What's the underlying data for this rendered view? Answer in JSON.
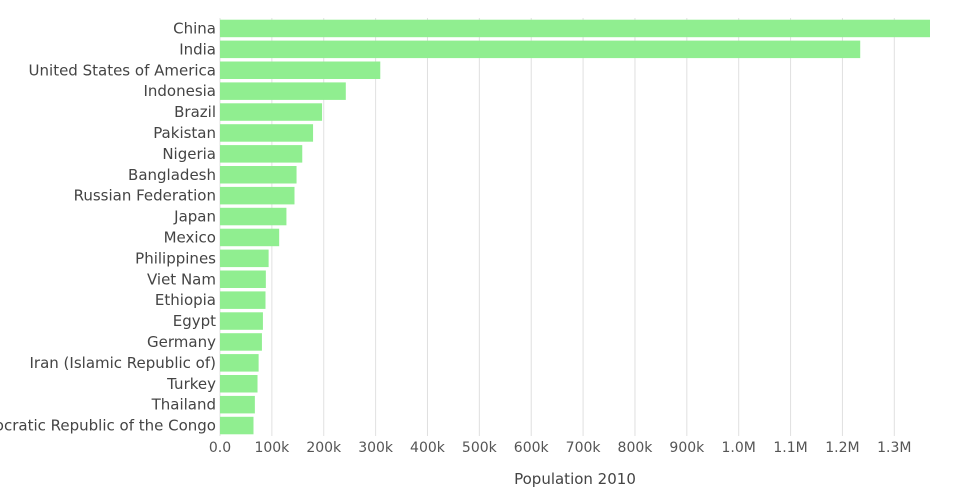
{
  "chart_data": {
    "type": "bar",
    "orientation": "horizontal",
    "categories": [
      "China",
      "India",
      "United States of America",
      "Indonesia",
      "Brazil",
      "Pakistan",
      "Nigeria",
      "Bangladesh",
      "Russian Federation",
      "Japan",
      "Mexico",
      "Philippines",
      "Viet Nam",
      "Ethiopia",
      "Egypt",
      "Germany",
      "Iran (Islamic Republic of)",
      "Turkey",
      "Thailand",
      "Democratic Republic of the Congo"
    ],
    "values": [
      1368811,
      1234281,
      309011,
      242524,
      196796,
      179425,
      158578,
      147575,
      143618,
      128070,
      114093,
      93727,
      88358,
      87703,
      82761,
      80827,
      74462,
      72310,
      67209,
      64564
    ],
    "xlabel": "Population 2010",
    "ylabel": "",
    "xlim": [
      0,
      1368811
    ],
    "xticks": [
      0,
      100000,
      200000,
      300000,
      400000,
      500000,
      600000,
      700000,
      800000,
      900000,
      1000000,
      1100000,
      1200000,
      1300000
    ],
    "xtick_labels": [
      "0.0",
      "100k",
      "200k",
      "300k",
      "400k",
      "500k",
      "600k",
      "700k",
      "800k",
      "900k",
      "1.0M",
      "1.1M",
      "1.2M",
      "1.3M"
    ],
    "grid": true,
    "legend": false,
    "bar_color": "#90ee90",
    "grid_color": "#e0e0e0",
    "text_color": "#444444"
  }
}
